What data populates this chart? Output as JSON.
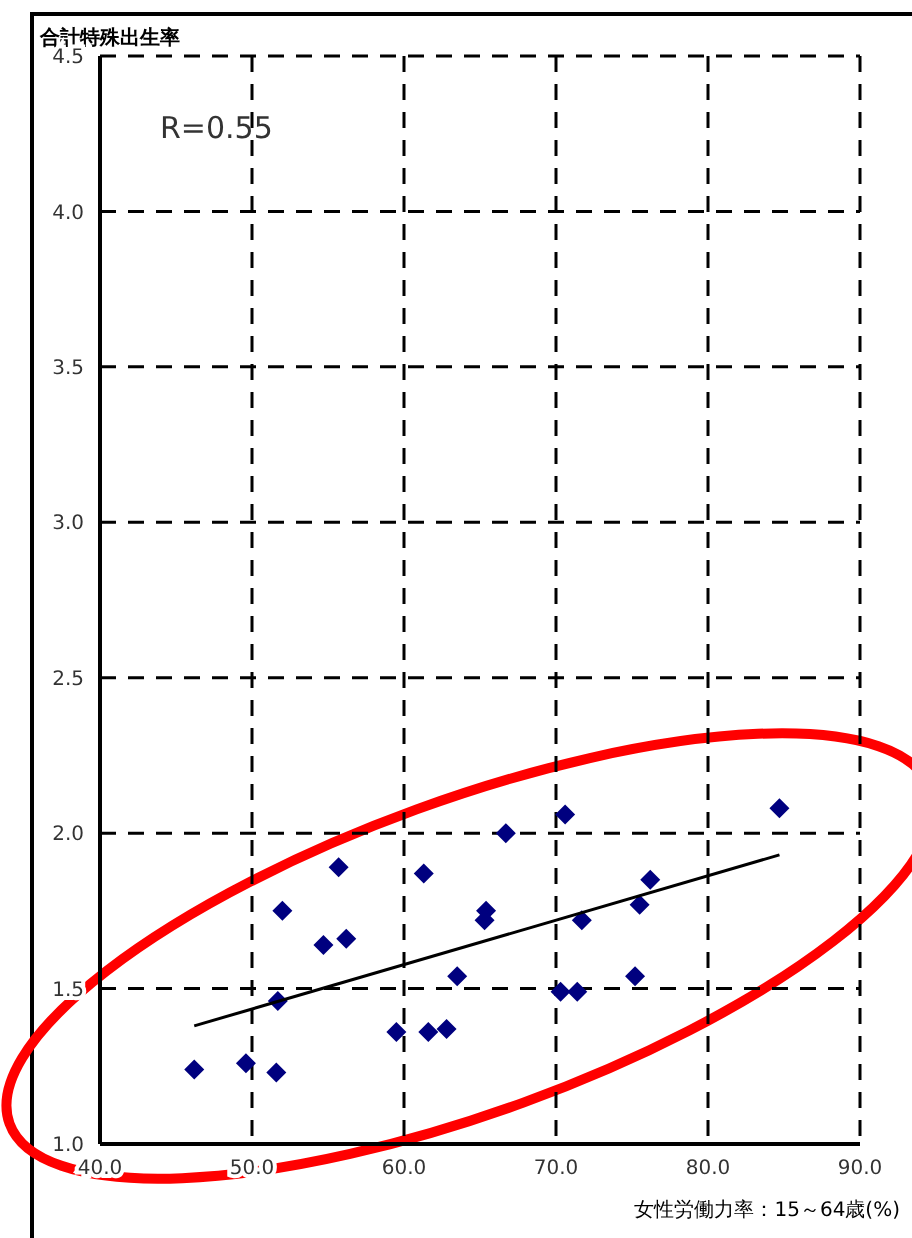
{
  "chart_data": {
    "type": "scatter",
    "ylabel": "合計特殊出生率",
    "xlabel": "女性労働力率：15～64歳(%)",
    "annotations": [
      "R=0.55"
    ],
    "xlim": [
      40,
      90
    ],
    "xticks": [
      {
        "value": 40,
        "label": "40.0"
      },
      {
        "value": 50,
        "label": "50.0"
      },
      {
        "value": 60,
        "label": "60.0"
      },
      {
        "value": 70,
        "label": "70.0"
      },
      {
        "value": 80,
        "label": "80.0"
      },
      {
        "value": 90,
        "label": "90.0"
      }
    ],
    "ylim": [
      1,
      4.5
    ],
    "yticks": [
      {
        "value": 1,
        "label": "1.0"
      },
      {
        "value": 1.5,
        "label": "1.5"
      },
      {
        "value": 2,
        "label": "2.0"
      },
      {
        "value": 2.5,
        "label": "2.5"
      },
      {
        "value": 3,
        "label": "3.0"
      },
      {
        "value": 3.5,
        "label": "3.5"
      },
      {
        "value": 4,
        "label": "4.0"
      },
      {
        "value": 4.5,
        "label": "4.5"
      }
    ],
    "grid": true,
    "marker": "diamond",
    "series": [
      {
        "color": "#00007f",
        "x": [
          46.2,
          49.6,
          51.6,
          51.7,
          52.0,
          54.7,
          55.7,
          56.2,
          59.5,
          61.3,
          61.6,
          62.8,
          63.5,
          65.3,
          65.4,
          66.7,
          70.3,
          70.6,
          71.4,
          71.7,
          75.2,
          75.5,
          76.2,
          84.7
        ],
        "values": [
          1.24,
          1.26,
          1.23,
          1.46,
          1.75,
          1.64,
          1.89,
          1.66,
          1.36,
          1.87,
          1.36,
          1.37,
          1.54,
          1.72,
          1.75,
          2.0,
          1.49,
          2.06,
          1.49,
          1.72,
          1.54,
          1.77,
          1.85,
          2.08
        ]
      },
      {
        "type": "line",
        "marker": "none",
        "color": "#000000",
        "x": [
          46.2,
          84.7
        ],
        "values": [
          1.38,
          1.93
        ]
      }
    ]
  }
}
